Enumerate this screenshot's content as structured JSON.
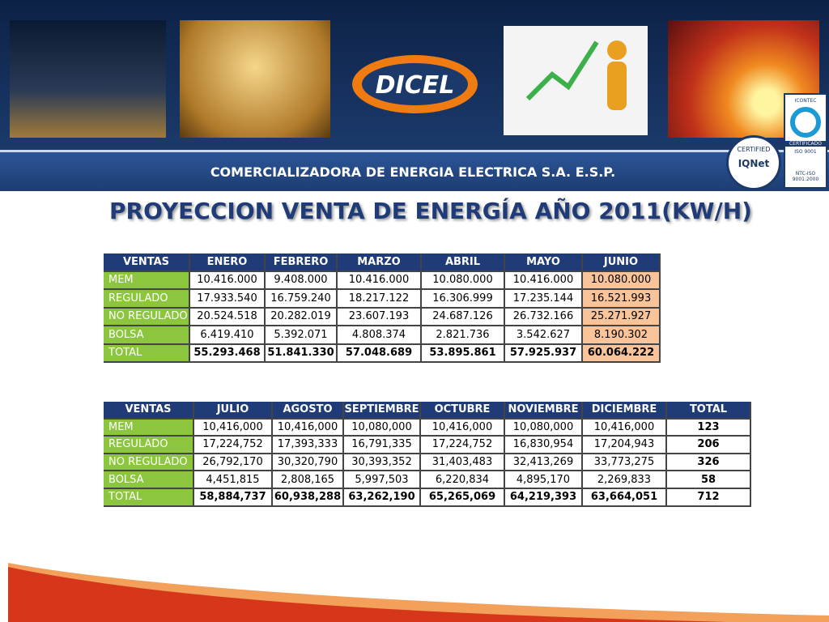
{
  "header": {
    "logo": "DICEL",
    "company": "COMERCIALIZADORA DE ENERGIA ELECTRICA S.A. E.S.P.",
    "badge_iqnet": "IQNet",
    "badge_certified": "CERTIFIED",
    "badge_icontec": "ICONTEC",
    "badge_certificado": "CERTIFICADO",
    "badge_iso": "ISO 9001",
    "badge_ntc": "NTC-ISO 9001:2000"
  },
  "title": "PROYECCION VENTA DE ENERGÍA AÑO 2011(KW/H)",
  "tables": [
    {
      "columns": [
        "VENTAS",
        "ENERO",
        "FEBRERO",
        "MARZO",
        "ABRIL",
        "MAYO",
        "JUNIO"
      ],
      "rows": [
        [
          "MEM",
          "10.416.000",
          "9.408.000",
          "10.416.000",
          "10.080.000",
          "10.416.000",
          "10.080.000"
        ],
        [
          "REGULADO",
          "17.933.540",
          "16.759.240",
          "18.217.122",
          "16.306.999",
          "17.235.144",
          "16.521.993"
        ],
        [
          "NO REGULADO",
          "20.524.518",
          "20.282.019",
          "23.607.193",
          "24.687.126",
          "26.732.166",
          "25.271.927"
        ],
        [
          "BOLSA",
          "6.419.410",
          "5.392.071",
          "4.808.374",
          "2.821.736",
          "3.542.627",
          "8.190.302"
        ],
        [
          "TOTAL",
          "55.293.468",
          "51.841.330",
          "57.048.689",
          "53.895.861",
          "57.925.937",
          "60.064.222"
        ]
      ]
    },
    {
      "columns": [
        "VENTAS",
        "JULIO",
        "AGOSTO",
        "SEPTIEMBRE",
        "OCTUBRE",
        "NOVIEMBRE",
        "DICIEMBRE",
        "TOTAL"
      ],
      "rows": [
        [
          "MEM",
          "10,416,000",
          "10,416,000",
          "10,080,000",
          "10,416,000",
          "10,080,000",
          "10,416,000",
          "123"
        ],
        [
          "REGULADO",
          "17,224,752",
          "17,393,333",
          "16,791,335",
          "17,224,752",
          "16,830,954",
          "17,204,943",
          "206"
        ],
        [
          "NO REGULADO",
          "26,792,170",
          "30,320,790",
          "30,393,352",
          "31,403,483",
          "32,413,269",
          "33,773,275",
          "326"
        ],
        [
          "BOLSA",
          "4,451,815",
          "2,808,165",
          "5,997,503",
          "6,220,834",
          "4,895,170",
          "2,269,833",
          "58"
        ],
        [
          "TOTAL",
          "58,884,737",
          "60,938,288",
          "63,262,190",
          "65,265,069",
          "64,219,393",
          "63,664,051",
          "712"
        ]
      ]
    }
  ]
}
